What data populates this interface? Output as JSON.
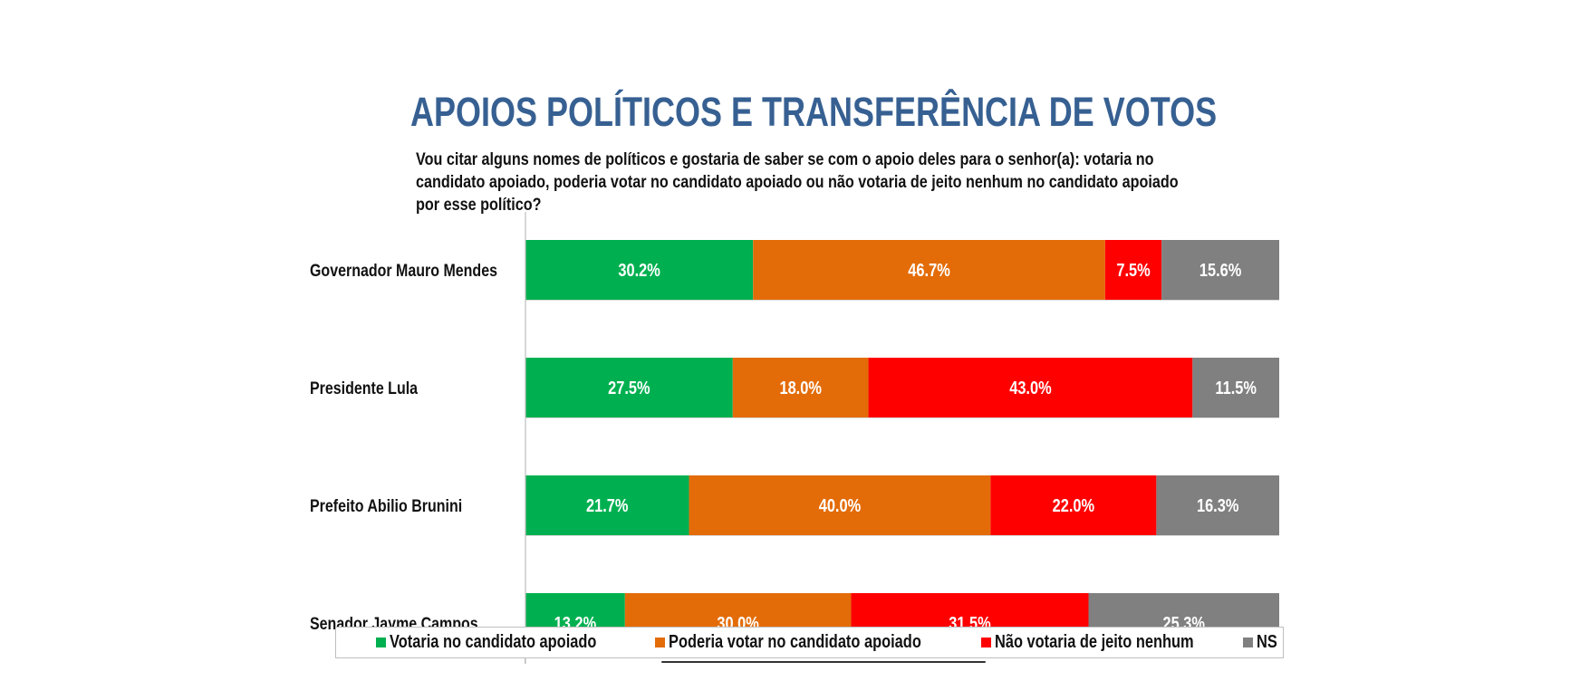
{
  "header": {
    "title": "APOIOS POLÍTICOS E TRANSFERÊNCIA DE VOTOS",
    "subtitle_lines": [
      "Vou citar alguns nomes de políticos e gostaria de saber se com o apoio deles para o senhor(a): votaria no",
      "candidato apoiado, poderia votar no candidato apoiado ou não votaria de jeito nenhum no candidato apoiado",
      "por esse político?"
    ]
  },
  "chart_data": {
    "type": "bar",
    "orientation": "horizontal",
    "stacked": "100%",
    "title": "APOIOS POLÍTICOS E TRANSFERÊNCIA DE VOTOS",
    "subtitle": "Vou citar alguns nomes de políticos e gostaria de saber se com o apoio deles para o senhor(a): votaria no candidato apoiado, poderia votar no candidato apoiado ou não votaria de jeito nenhum no candidato apoiado por esse político?",
    "xlabel": "",
    "ylabel": "",
    "xlim": [
      0,
      100
    ],
    "grid": false,
    "legend_position": "bottom",
    "value_format": "{v}%",
    "categories": [
      "Governador Mauro Mendes",
      "Presidente Lula",
      "Prefeito Abilio Brunini",
      "Senador Jayme Campos"
    ],
    "series": [
      {
        "name": "Votaria no candidato apoiado",
        "color": "#00B050",
        "values": [
          30.2,
          27.5,
          21.7,
          13.2
        ]
      },
      {
        "name": "Poderia votar no candidato apoiado",
        "color": "#E36C09",
        "values": [
          46.7,
          18.0,
          40.0,
          30.0
        ]
      },
      {
        "name": "Não votaria de jeito nenhum",
        "color": "#FF0000",
        "values": [
          7.5,
          43.0,
          22.0,
          31.5
        ]
      },
      {
        "name": "NS",
        "color": "#808080",
        "values": [
          15.6,
          11.5,
          16.3,
          25.3
        ]
      }
    ]
  },
  "legend": {
    "items": [
      {
        "label": "Votaria no candidato apoiado",
        "color": "#00B050"
      },
      {
        "label": "Poderia votar no candidato apoiado",
        "color": "#E36C09"
      },
      {
        "label": "Não votaria de jeito nenhum",
        "color": "#FF0000"
      },
      {
        "label": "NS",
        "color": "#808080"
      }
    ]
  },
  "colors": {
    "title": "#376092",
    "axis": "#BFBFBF"
  }
}
